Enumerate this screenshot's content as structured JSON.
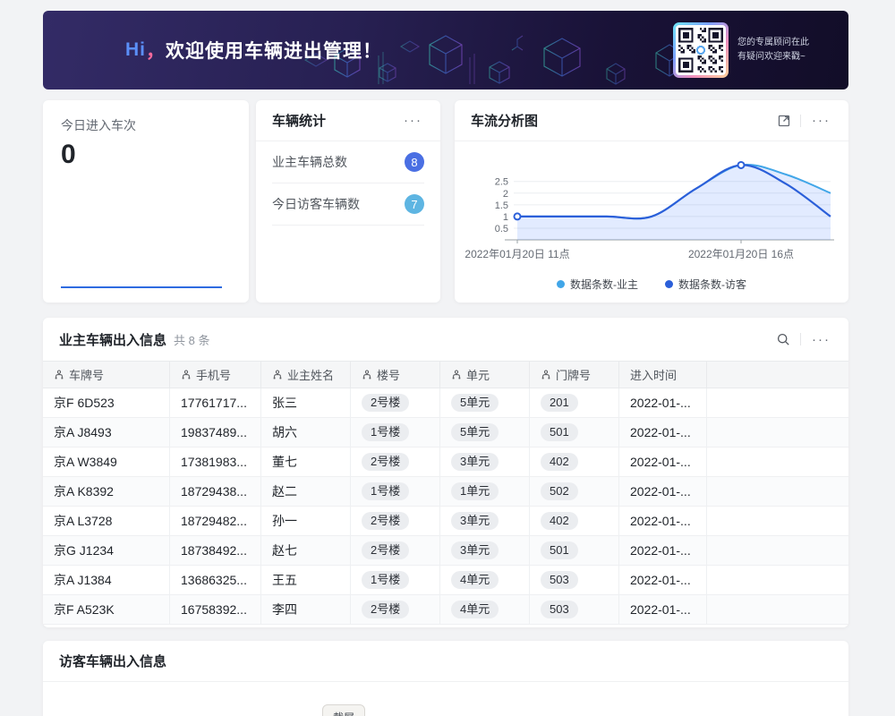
{
  "banner": {
    "hi": "Hi",
    "comma": "，",
    "title": "欢迎使用车辆进出管理！",
    "qr_caption_line1": "您的专属顾问在此",
    "qr_caption_line2": "有疑问欢迎来戳~"
  },
  "ui": {
    "more": "···"
  },
  "today_card": {
    "label": "今日进入车次",
    "value": "0"
  },
  "vehicle_stats_card": {
    "title": "车辆统计",
    "items": [
      {
        "label": "业主车辆总数",
        "value": "8",
        "badge_color": "#4a6fe3"
      },
      {
        "label": "今日访客车辆数",
        "value": "7",
        "badge_color": "#5eb5e2"
      }
    ]
  },
  "chart_card": {
    "title": "车流分析图"
  },
  "chart_data": {
    "type": "area",
    "title": "车流分析图",
    "x": [
      11,
      12,
      13,
      14,
      15,
      16,
      17,
      18
    ],
    "series": [
      {
        "name": "数据条数-业主",
        "color": "#41a6e8",
        "values": [
          1,
          1,
          1,
          1,
          2.2,
          3.2,
          2.8,
          2
        ]
      },
      {
        "name": "数据条数-访客",
        "color": "#2b5fd9",
        "values": [
          1,
          1,
          1,
          1,
          2.2,
          3.2,
          2.4,
          1
        ]
      }
    ],
    "markers": [
      {
        "x": 11,
        "y": 1
      },
      {
        "x": 16,
        "y": 3.2
      }
    ],
    "y_ticks": [
      0.5,
      1,
      1.5,
      2,
      2.5
    ],
    "ylim": [
      0,
      3.6
    ],
    "x_tick_labels": [
      {
        "x": 11,
        "label": "2022年01月20日 11点"
      },
      {
        "x": 16,
        "label": "2022年01月20日 16点"
      }
    ],
    "fill_color": "#3370ff",
    "fill_opacity": 0.14,
    "grid": true,
    "legend_position": "bottom"
  },
  "owner_table": {
    "title": "业主车辆出入信息",
    "count_label": "共 8 条",
    "columns": [
      {
        "label": "车牌号",
        "icon": true,
        "key": "plate",
        "pill": false
      },
      {
        "label": "手机号",
        "icon": true,
        "key": "phone",
        "pill": false
      },
      {
        "label": "业主姓名",
        "icon": true,
        "key": "name",
        "pill": false
      },
      {
        "label": "楼号",
        "icon": true,
        "key": "building",
        "pill": true
      },
      {
        "label": "单元",
        "icon": true,
        "key": "unit",
        "pill": true
      },
      {
        "label": "门牌号",
        "icon": true,
        "key": "door",
        "pill": true
      },
      {
        "label": "进入时间",
        "icon": false,
        "key": "time",
        "pill": false
      },
      {
        "label": "",
        "icon": false,
        "key": "",
        "pill": false
      }
    ],
    "rows": [
      {
        "plate": "京F 6D523",
        "phone": "17761717...",
        "name": "张三",
        "building": "2号楼",
        "unit": "5单元",
        "door": "201",
        "time": "2022-01-..."
      },
      {
        "plate": "京A J8493",
        "phone": "19837489...",
        "name": "胡六",
        "building": "1号楼",
        "unit": "5单元",
        "door": "501",
        "time": "2022-01-..."
      },
      {
        "plate": "京A W3849",
        "phone": "17381983...",
        "name": "董七",
        "building": "2号楼",
        "unit": "3单元",
        "door": "402",
        "time": "2022-01-..."
      },
      {
        "plate": "京A K8392",
        "phone": "18729438...",
        "name": "赵二",
        "building": "1号楼",
        "unit": "1单元",
        "door": "502",
        "time": "2022-01-..."
      },
      {
        "plate": "京A L3728",
        "phone": "18729482...",
        "name": "孙一",
        "building": "2号楼",
        "unit": "3单元",
        "door": "402",
        "time": "2022-01-..."
      },
      {
        "plate": "京G J1234",
        "phone": "18738492...",
        "name": "赵七",
        "building": "2号楼",
        "unit": "3单元",
        "door": "501",
        "time": "2022-01-..."
      },
      {
        "plate": "京A J1384",
        "phone": "13686325...",
        "name": "王五",
        "building": "1号楼",
        "unit": "4单元",
        "door": "503",
        "time": "2022-01-..."
      },
      {
        "plate": "京F A523K",
        "phone": "16758392...",
        "name": "李四",
        "building": "2号楼",
        "unit": "4单元",
        "door": "503",
        "time": "2022-01-..."
      }
    ]
  },
  "visitor_section": {
    "title": "访客车辆出入信息"
  },
  "floating_button": {
    "label": "截屏"
  }
}
